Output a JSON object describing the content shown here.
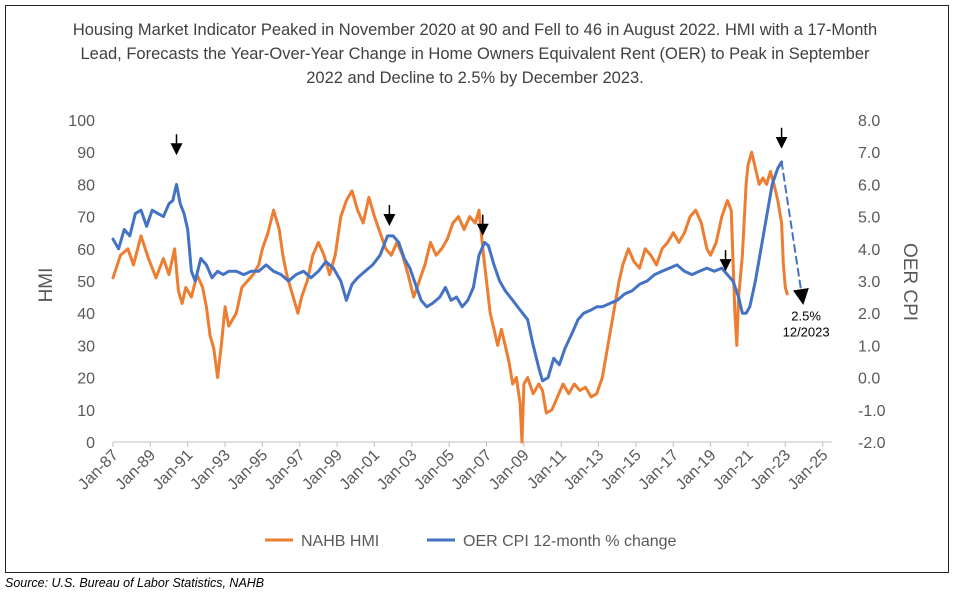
{
  "title": "Housing Market Indicator Peaked in November 2020 at 90 and Fell to 46 in August 2022. HMI with a 17-Month Lead, Forecasts the Year-Over-Year Change in Home Owners Equivalent Rent (OER) to Peak in September 2022 and Decline to 2.5% by December 2023.",
  "source": "Source: U.S. Bureau of Labor Statistics, NAHB",
  "chart_data": {
    "type": "line",
    "title": "Housing Market Indicator Peaked in November 2020 at 90 and Fell to 46 in August 2022. HMI with a 17-Month Lead, Forecasts the Year-Over-Year Change in Home Owners Equivalent Rent (OER) to Peak in September 2022 and Decline to 2.5% by December 2023.",
    "ylabel": "HMI",
    "y2label": "OER CPI",
    "xlim": [
      1987.0,
      2025.5
    ],
    "ylim": [
      0,
      100
    ],
    "y2lim": [
      -2.0,
      8.0
    ],
    "x_ticks": [
      "Jan-87",
      "Jan-89",
      "Jan-91",
      "Jan-93",
      "Jan-95",
      "Jan-97",
      "Jan-99",
      "Jan-01",
      "Jan-03",
      "Jan-05",
      "Jan-07",
      "Jan-09",
      "Jan-11",
      "Jan-13",
      "Jan-15",
      "Jan-17",
      "Jan-19",
      "Jan-21",
      "Jan-23",
      "Jan-25"
    ],
    "y_ticks": [
      "0",
      "10",
      "20",
      "30",
      "40",
      "50",
      "60",
      "70",
      "80",
      "90",
      "100"
    ],
    "y2_ticks": [
      "-2.0",
      "-1.0",
      "0.0",
      "1.0",
      "2.0",
      "3.0",
      "4.0",
      "5.0",
      "6.0",
      "7.0",
      "8.0"
    ],
    "grid": false,
    "legend_position": "bottom",
    "series": [
      {
        "name": "NAHB HMI",
        "axis": "left",
        "color": "#ED7D31",
        "points": [
          [
            1987.0,
            51
          ],
          [
            1987.4,
            58
          ],
          [
            1987.8,
            60
          ],
          [
            1988.1,
            55
          ],
          [
            1988.5,
            64
          ],
          [
            1988.9,
            57
          ],
          [
            1989.3,
            51
          ],
          [
            1989.7,
            57
          ],
          [
            1990.0,
            52
          ],
          [
            1990.3,
            60
          ],
          [
            1990.5,
            47
          ],
          [
            1990.7,
            43
          ],
          [
            1990.9,
            48
          ],
          [
            1991.2,
            45
          ],
          [
            1991.5,
            52
          ],
          [
            1991.8,
            48
          ],
          [
            1992.0,
            42
          ],
          [
            1992.2,
            33
          ],
          [
            1992.4,
            29
          ],
          [
            1992.6,
            20
          ],
          [
            1992.8,
            30
          ],
          [
            1993.0,
            42
          ],
          [
            1993.2,
            36
          ],
          [
            1993.4,
            38
          ],
          [
            1993.6,
            40
          ],
          [
            1993.9,
            48
          ],
          [
            1994.2,
            50
          ],
          [
            1994.5,
            52
          ],
          [
            1994.8,
            55
          ],
          [
            1995.0,
            60
          ],
          [
            1995.3,
            65
          ],
          [
            1995.6,
            72
          ],
          [
            1995.9,
            66
          ],
          [
            1996.1,
            58
          ],
          [
            1996.3,
            52
          ],
          [
            1996.5,
            48
          ],
          [
            1996.7,
            44
          ],
          [
            1996.9,
            40
          ],
          [
            1997.1,
            45
          ],
          [
            1997.4,
            50
          ],
          [
            1997.7,
            58
          ],
          [
            1998.0,
            62
          ],
          [
            1998.3,
            58
          ],
          [
            1998.6,
            52
          ],
          [
            1998.9,
            58
          ],
          [
            1999.2,
            70
          ],
          [
            1999.5,
            75
          ],
          [
            1999.8,
            78
          ],
          [
            2000.1,
            72
          ],
          [
            2000.4,
            68
          ],
          [
            2000.7,
            76
          ],
          [
            2001.0,
            70
          ],
          [
            2001.3,
            65
          ],
          [
            2001.6,
            60
          ],
          [
            2001.9,
            58
          ],
          [
            2002.2,
            62
          ],
          [
            2002.5,
            58
          ],
          [
            2002.8,
            52
          ],
          [
            2003.1,
            45
          ],
          [
            2003.4,
            50
          ],
          [
            2003.7,
            55
          ],
          [
            2004.0,
            62
          ],
          [
            2004.3,
            58
          ],
          [
            2004.6,
            60
          ],
          [
            2004.9,
            63
          ],
          [
            2005.2,
            68
          ],
          [
            2005.5,
            70
          ],
          [
            2005.8,
            66
          ],
          [
            2006.1,
            70
          ],
          [
            2006.4,
            68
          ],
          [
            2006.6,
            72
          ],
          [
            2006.8,
            60
          ],
          [
            2007.0,
            50
          ],
          [
            2007.2,
            40
          ],
          [
            2007.4,
            35
          ],
          [
            2007.6,
            30
          ],
          [
            2007.8,
            35
          ],
          [
            2008.0,
            30
          ],
          [
            2008.2,
            25
          ],
          [
            2008.4,
            18
          ],
          [
            2008.6,
            20
          ],
          [
            2008.8,
            12
          ],
          [
            2008.9,
            0
          ],
          [
            2009.0,
            18
          ],
          [
            2009.2,
            20
          ],
          [
            2009.5,
            15
          ],
          [
            2009.8,
            18
          ],
          [
            2010.0,
            16
          ],
          [
            2010.2,
            9
          ],
          [
            2010.5,
            10
          ],
          [
            2010.8,
            14
          ],
          [
            2011.1,
            18
          ],
          [
            2011.4,
            15
          ],
          [
            2011.7,
            18
          ],
          [
            2012.0,
            16
          ],
          [
            2012.3,
            17
          ],
          [
            2012.6,
            14
          ],
          [
            2012.9,
            15
          ],
          [
            2013.2,
            20
          ],
          [
            2013.5,
            30
          ],
          [
            2013.8,
            40
          ],
          [
            2014.1,
            50
          ],
          [
            2014.3,
            55
          ],
          [
            2014.6,
            60
          ],
          [
            2014.9,
            56
          ],
          [
            2015.2,
            54
          ],
          [
            2015.5,
            60
          ],
          [
            2015.8,
            58
          ],
          [
            2016.1,
            55
          ],
          [
            2016.4,
            60
          ],
          [
            2016.7,
            62
          ],
          [
            2017.0,
            65
          ],
          [
            2017.3,
            62
          ],
          [
            2017.6,
            65
          ],
          [
            2017.9,
            70
          ],
          [
            2018.2,
            72
          ],
          [
            2018.5,
            68
          ],
          [
            2018.8,
            60
          ],
          [
            2019.0,
            58
          ],
          [
            2019.3,
            62
          ],
          [
            2019.6,
            70
          ],
          [
            2019.9,
            75
          ],
          [
            2020.1,
            72
          ],
          [
            2020.3,
            40
          ],
          [
            2020.4,
            30
          ],
          [
            2020.5,
            45
          ],
          [
            2020.7,
            58
          ],
          [
            2020.9,
            80
          ],
          [
            2021.0,
            86
          ],
          [
            2021.2,
            90
          ],
          [
            2021.4,
            85
          ],
          [
            2021.6,
            80
          ],
          [
            2021.8,
            82
          ],
          [
            2022.0,
            80
          ],
          [
            2022.2,
            84
          ],
          [
            2022.4,
            80
          ],
          [
            2022.6,
            75
          ],
          [
            2022.8,
            68
          ],
          [
            2022.9,
            55
          ],
          [
            2023.0,
            48
          ],
          [
            2023.1,
            46
          ]
        ]
      },
      {
        "name": "OER CPI 12-month % change",
        "axis": "right",
        "color": "#4472C4",
        "points": [
          [
            1987.0,
            4.3
          ],
          [
            1987.3,
            4.0
          ],
          [
            1987.6,
            4.6
          ],
          [
            1987.9,
            4.4
          ],
          [
            1988.2,
            5.1
          ],
          [
            1988.5,
            5.2
          ],
          [
            1988.8,
            4.7
          ],
          [
            1989.1,
            5.2
          ],
          [
            1989.4,
            5.1
          ],
          [
            1989.7,
            5.0
          ],
          [
            1990.0,
            5.4
          ],
          [
            1990.2,
            5.5
          ],
          [
            1990.4,
            6.0
          ],
          [
            1990.6,
            5.4
          ],
          [
            1990.8,
            5.1
          ],
          [
            1991.0,
            4.6
          ],
          [
            1991.2,
            3.3
          ],
          [
            1991.4,
            3.0
          ],
          [
            1991.7,
            3.7
          ],
          [
            1992.0,
            3.5
          ],
          [
            1992.3,
            3.1
          ],
          [
            1992.6,
            3.3
          ],
          [
            1992.9,
            3.2
          ],
          [
            1993.2,
            3.3
          ],
          [
            1993.6,
            3.3
          ],
          [
            1994.0,
            3.2
          ],
          [
            1994.4,
            3.3
          ],
          [
            1994.8,
            3.3
          ],
          [
            1995.2,
            3.5
          ],
          [
            1995.6,
            3.3
          ],
          [
            1996.0,
            3.2
          ],
          [
            1996.4,
            3.0
          ],
          [
            1996.8,
            3.2
          ],
          [
            1997.2,
            3.3
          ],
          [
            1997.6,
            3.1
          ],
          [
            1998.0,
            3.3
          ],
          [
            1998.4,
            3.6
          ],
          [
            1998.8,
            3.4
          ],
          [
            1999.2,
            3.0
          ],
          [
            1999.5,
            2.4
          ],
          [
            1999.8,
            2.9
          ],
          [
            2000.1,
            3.1
          ],
          [
            2000.5,
            3.3
          ],
          [
            2000.9,
            3.5
          ],
          [
            2001.3,
            3.8
          ],
          [
            2001.7,
            4.4
          ],
          [
            2002.0,
            4.4
          ],
          [
            2002.3,
            4.2
          ],
          [
            2002.6,
            3.7
          ],
          [
            2002.9,
            3.4
          ],
          [
            2003.2,
            2.9
          ],
          [
            2003.5,
            2.4
          ],
          [
            2003.8,
            2.2
          ],
          [
            2004.1,
            2.3
          ],
          [
            2004.5,
            2.5
          ],
          [
            2004.8,
            2.8
          ],
          [
            2005.1,
            2.4
          ],
          [
            2005.4,
            2.5
          ],
          [
            2005.7,
            2.2
          ],
          [
            2006.0,
            2.4
          ],
          [
            2006.3,
            2.8
          ],
          [
            2006.6,
            3.8
          ],
          [
            2006.9,
            4.2
          ],
          [
            2007.1,
            4.1
          ],
          [
            2007.4,
            3.5
          ],
          [
            2007.7,
            3.0
          ],
          [
            2008.0,
            2.7
          ],
          [
            2008.4,
            2.4
          ],
          [
            2008.8,
            2.1
          ],
          [
            2009.2,
            1.8
          ],
          [
            2009.5,
            1.0
          ],
          [
            2009.8,
            0.3
          ],
          [
            2010.0,
            -0.1
          ],
          [
            2010.3,
            0.0
          ],
          [
            2010.6,
            0.6
          ],
          [
            2010.9,
            0.4
          ],
          [
            2011.2,
            0.9
          ],
          [
            2011.6,
            1.4
          ],
          [
            2011.9,
            1.8
          ],
          [
            2012.2,
            2.0
          ],
          [
            2012.6,
            2.1
          ],
          [
            2012.9,
            2.2
          ],
          [
            2013.2,
            2.2
          ],
          [
            2013.6,
            2.3
          ],
          [
            2014.0,
            2.4
          ],
          [
            2014.4,
            2.6
          ],
          [
            2014.8,
            2.7
          ],
          [
            2015.2,
            2.9
          ],
          [
            2015.6,
            3.0
          ],
          [
            2016.0,
            3.2
          ],
          [
            2016.4,
            3.3
          ],
          [
            2016.8,
            3.4
          ],
          [
            2017.2,
            3.5
          ],
          [
            2017.6,
            3.3
          ],
          [
            2018.0,
            3.2
          ],
          [
            2018.4,
            3.3
          ],
          [
            2018.8,
            3.4
          ],
          [
            2019.2,
            3.3
          ],
          [
            2019.6,
            3.4
          ],
          [
            2019.9,
            3.2
          ],
          [
            2020.2,
            3.0
          ],
          [
            2020.5,
            2.5
          ],
          [
            2020.7,
            2.0
          ],
          [
            2020.9,
            2.0
          ],
          [
            2021.1,
            2.2
          ],
          [
            2021.4,
            3.0
          ],
          [
            2021.7,
            4.0
          ],
          [
            2022.0,
            5.0
          ],
          [
            2022.3,
            6.0
          ],
          [
            2022.6,
            6.5
          ],
          [
            2022.8,
            6.7
          ]
        ]
      },
      {
        "name": "OER forecast",
        "axis": "right",
        "color": "#4472C4",
        "style": "dashed",
        "points": [
          [
            2022.8,
            6.7
          ],
          [
            2023.9,
            2.5
          ]
        ]
      }
    ],
    "annotations": [
      {
        "type": "arrow",
        "x": 1990.4,
        "y": 90
      },
      {
        "type": "arrow",
        "x": 2001.8,
        "y": 68
      },
      {
        "type": "arrow",
        "x": 2006.8,
        "y": 65
      },
      {
        "type": "arrow",
        "x": 2019.8,
        "y": 54
      },
      {
        "type": "arrow",
        "x": 2022.8,
        "y": 92
      },
      {
        "type": "label",
        "text": "2.5%",
        "x": 2023.9,
        "y": 39
      },
      {
        "type": "label",
        "text": "12/2023",
        "x": 2023.9,
        "y": 34
      }
    ]
  }
}
